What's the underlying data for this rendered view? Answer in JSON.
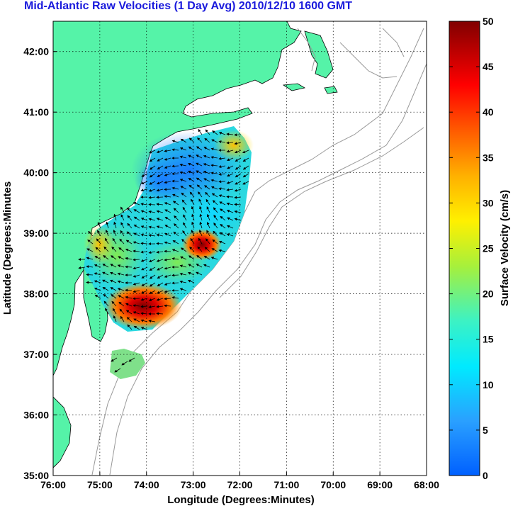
{
  "title": "Mid-Atlantic Raw Velocities (1 Day Avg) 2010/12/10 1600 GMT",
  "xlabel": "Longitude (Degrees:Minutes)",
  "ylabel": "Latitude (Degrees:Minutes",
  "colorbar_label": "Surface Velocity (cm/s)",
  "x_ticks": [
    "76:00",
    "75:00",
    "74:00",
    "73:00",
    "72:00",
    "71:00",
    "70:00",
    "69:00",
    "68:00"
  ],
  "y_ticks": [
    "42:00",
    "41:00",
    "40:00",
    "39:00",
    "38:00",
    "37:00",
    "36:00",
    "35:00"
  ],
  "colorbar_ticks": [
    "50",
    "45",
    "40",
    "35",
    "30",
    "25",
    "20",
    "15",
    "10",
    "5",
    "0"
  ],
  "colors": {
    "land": "#55f3a8",
    "title": "#1a1adc",
    "coast_line": "#000000",
    "bathymetry": "#999999"
  },
  "chart_data": {
    "type": "heatmap",
    "title": "Mid-Atlantic Raw Velocities (1 Day Avg) 2010/12/10 1600 GMT",
    "xlabel": "Longitude (Degrees:Minutes)",
    "ylabel": "Latitude (Degrees:Minutes",
    "xlim": [
      -76,
      -68
    ],
    "ylim": [
      35,
      42.5
    ],
    "color_range": [
      0,
      50
    ],
    "color_label": "Surface Velocity (cm/s)",
    "grid": true,
    "hotspots": [
      {
        "lon": -73.8,
        "lat": 37.7,
        "value": 50
      },
      {
        "lon": -72.9,
        "lat": 38.5,
        "value": 45
      },
      {
        "lon": -75.3,
        "lat": 38.8,
        "value": 30
      },
      {
        "lon": -73.5,
        "lat": 39.8,
        "value": 5
      },
      {
        "lon": -74.3,
        "lat": 39.9,
        "value": 6
      },
      {
        "lon": -72.4,
        "lat": 40.3,
        "value": 24
      }
    ]
  }
}
